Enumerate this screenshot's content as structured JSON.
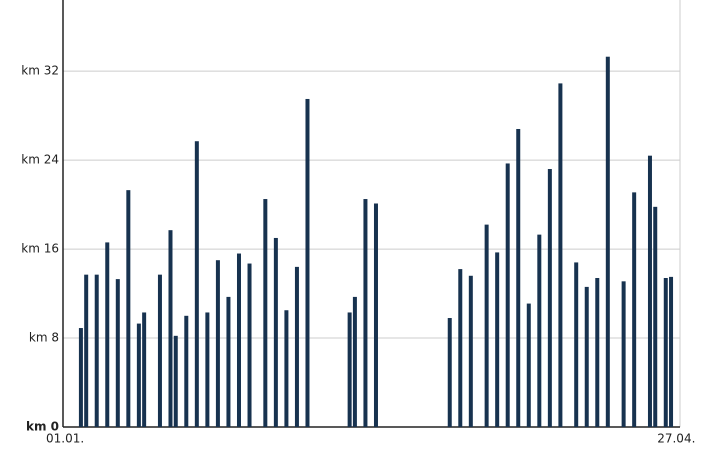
{
  "chart_data": {
    "type": "bar",
    "color": "#17324f",
    "grid": true,
    "x": [
      3,
      4,
      6,
      8,
      10,
      12,
      14,
      15,
      18,
      20,
      21,
      23,
      25,
      27,
      29,
      31,
      33,
      35,
      38,
      40,
      42,
      44,
      46,
      54,
      55,
      57,
      59,
      73,
      75,
      77,
      80,
      82,
      84,
      86,
      88,
      90,
      92,
      94,
      97,
      99,
      101,
      103,
      106,
      108,
      111,
      112,
      114,
      115
    ],
    "values": [
      8.9,
      13.7,
      13.7,
      16.6,
      13.3,
      21.3,
      9.3,
      10.3,
      13.7,
      17.7,
      8.2,
      10.0,
      25.7,
      10.3,
      15.0,
      11.7,
      15.6,
      14.7,
      20.5,
      17.0,
      10.5,
      14.4,
      29.5,
      10.3,
      11.7,
      20.5,
      20.1,
      9.8,
      14.2,
      13.6,
      18.2,
      15.7,
      23.7,
      26.8,
      11.1,
      17.3,
      23.2,
      30.9,
      14.8,
      12.6,
      13.4,
      33.3,
      13.1,
      21.1,
      24.4,
      19.8,
      13.4,
      13.5
    ],
    "xlim": [
      -0.4,
      116.7
    ],
    "xticks": [
      {
        "value": 0,
        "label": "01.01."
      },
      {
        "value": 116,
        "label": "27.04."
      }
    ],
    "ylim": [
      0,
      38.4
    ],
    "yticks": [
      {
        "value": 0,
        "label": "km 0"
      },
      {
        "value": 8,
        "label": "km 8"
      },
      {
        "value": 16,
        "label": "km 16"
      },
      {
        "value": 24,
        "label": "km 24"
      },
      {
        "value": 32,
        "label": "km 32"
      }
    ]
  }
}
